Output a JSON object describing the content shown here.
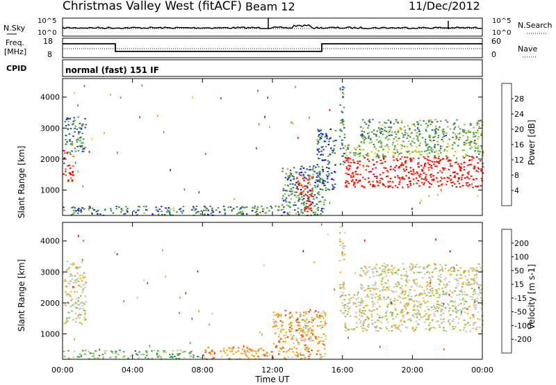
{
  "header": {
    "title": "Christmas Valley West (fitACF)",
    "beam": "Beam 12",
    "date": "11/Dec/2012"
  },
  "strips": {
    "nsky_label": "N.Sky",
    "nsky_ticks": [
      "10^5",
      "10^0"
    ],
    "nsearch_ticks": [
      "10^5",
      "10^0"
    ],
    "nsearch_label": "N.Search",
    "freq_label_1": "Freq.",
    "freq_label_2": "[MHz]",
    "freq_ticks": [
      "18",
      "8"
    ],
    "nave_ticks": [
      "60",
      "0"
    ],
    "nave_label": "Nave",
    "cpid_label": "CPID",
    "cpid_text": "normal (fast) 151 IF"
  },
  "colors": {
    "power": [
      "#0000ff",
      "#2040b0",
      "#3a7a50",
      "#40a040",
      "#90c040",
      "#f0c000",
      "#ff9000",
      "#ff5000",
      "#ff2000",
      "#ff0000"
    ],
    "velocity": [
      "#2020b0",
      "#207060",
      "#30a040",
      "#80c040",
      "#c0c0b0",
      "#c8c8b8",
      "#f0b000",
      "#ff8000",
      "#ff4000",
      "#ff0000"
    ]
  },
  "chart_data": [
    {
      "type": "heatmap",
      "name": "power-panel",
      "xlabel": "",
      "ylabel": "Slant Range [km]",
      "xlim": [
        "00:00",
        "00:00"
      ],
      "yticks": [
        1000,
        2000,
        3000,
        4000
      ],
      "colorbar": {
        "label": "Power [dB]",
        "ticks": [
          4,
          8,
          12,
          16,
          20,
          24,
          28
        ]
      },
      "regions": [
        {
          "t0": 0.0,
          "t1": 0.6,
          "r0": 1300,
          "r1": 2300,
          "level": 0.9
        },
        {
          "t0": 0.1,
          "t1": 1.3,
          "r0": 2100,
          "r1": 3400,
          "level": 0.25
        },
        {
          "t0": 0.0,
          "t1": 15.0,
          "r0": 200,
          "r1": 500,
          "level": 0.25
        },
        {
          "t0": 12.5,
          "t1": 15.0,
          "r0": 500,
          "r1": 1800,
          "level": 0.25
        },
        {
          "t0": 13.3,
          "t1": 14.3,
          "r0": 800,
          "r1": 1500,
          "level": 0.85
        },
        {
          "t0": 13.7,
          "t1": 14.2,
          "r0": 300,
          "r1": 800,
          "level": 0.95
        },
        {
          "t0": 14.5,
          "t1": 15.6,
          "r0": 1000,
          "r1": 3000,
          "level": 0.2
        },
        {
          "t0": 16.1,
          "t1": 24.0,
          "r0": 1100,
          "r1": 2100,
          "level": 0.95
        },
        {
          "t0": 16.1,
          "t1": 24.0,
          "r0": 2100,
          "r1": 2600,
          "level": 0.4
        },
        {
          "t0": 17.0,
          "t1": 24.0,
          "r0": 2600,
          "r1": 3300,
          "level": 0.35
        },
        {
          "t0": 15.8,
          "t1": 16.1,
          "r0": 1600,
          "r1": 4500,
          "level": 0.3
        }
      ]
    },
    {
      "type": "heatmap",
      "name": "velocity-panel",
      "xlabel": "Time UT",
      "ylabel": "Slant Range [km]",
      "xticks": [
        "00:00",
        "04:00",
        "08:00",
        "12:00",
        "16:00",
        "20:00",
        "00:00"
      ],
      "yticks": [
        1000,
        2000,
        3000,
        4000
      ],
      "colorbar": {
        "label": "Velocity [m s-1]",
        "ticks": [
          200,
          100,
          50,
          15,
          -15,
          -50,
          -100,
          -200
        ]
      },
      "regions": [
        {
          "t0": 0.0,
          "t1": 1.3,
          "r0": 1300,
          "r1": 3400,
          "level": 0.5
        },
        {
          "t0": 0.0,
          "t1": 8.0,
          "r0": 200,
          "r1": 500,
          "level": 0.35
        },
        {
          "t0": 8.0,
          "t1": 15.0,
          "r0": 200,
          "r1": 600,
          "level": 0.7
        },
        {
          "t0": 12.0,
          "t1": 15.0,
          "r0": 600,
          "r1": 1800,
          "level": 0.7
        },
        {
          "t0": 13.3,
          "t1": 14.3,
          "r0": 800,
          "r1": 1500,
          "level": 0.5
        },
        {
          "t0": 16.1,
          "t1": 24.0,
          "r0": 1100,
          "r1": 2400,
          "level": 0.5
        },
        {
          "t0": 17.0,
          "t1": 24.0,
          "r0": 2400,
          "r1": 3300,
          "level": 0.5
        },
        {
          "t0": 15.8,
          "t1": 16.1,
          "r0": 1600,
          "r1": 4500,
          "level": 0.55
        }
      ]
    }
  ]
}
